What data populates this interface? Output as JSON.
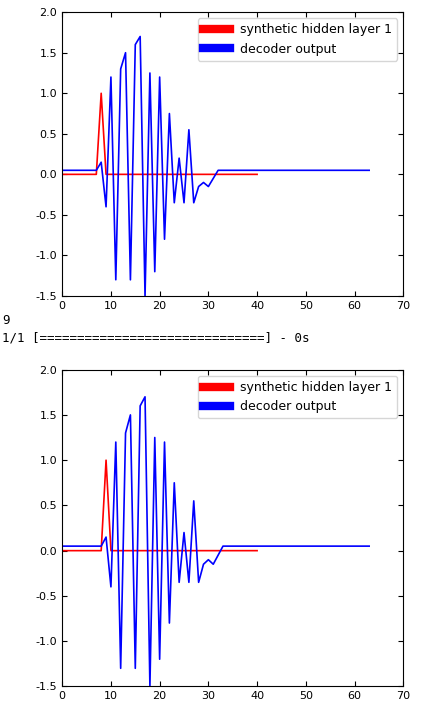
{
  "chart_data": [
    {
      "type": "line",
      "xlim": [
        0,
        70
      ],
      "xticks": [
        0,
        10,
        20,
        30,
        40,
        50,
        60,
        70
      ],
      "ylim": [
        -1.5,
        2.0
      ],
      "yticks": [
        -1.5,
        {
          "value": -1.0,
          "label": "-1.0"
        },
        -0.5,
        {
          "value": 0.0,
          "label": "0.0"
        },
        0.5,
        {
          "value": 1.0,
          "label": "1.0"
        },
        1.5,
        {
          "value": 2.0,
          "label": "2.0"
        }
      ],
      "legend": "upper right",
      "series": [
        {
          "name": "synthetic hidden layer 1",
          "color": "#ff0000",
          "x": [
            0,
            1,
            2,
            3,
            4,
            5,
            6,
            7,
            8,
            9,
            10,
            11,
            12,
            13,
            14,
            15,
            16,
            17,
            18,
            19,
            20,
            21,
            22,
            23,
            24,
            25,
            26,
            27,
            28,
            29,
            30,
            31,
            32,
            33,
            34,
            35,
            36,
            37,
            38,
            39,
            40
          ],
          "values": [
            0,
            0,
            0,
            0,
            0,
            0,
            0,
            0,
            1.0,
            0,
            0,
            0,
            0,
            0,
            0,
            0,
            0,
            0,
            0,
            0,
            0,
            0,
            0,
            0,
            0,
            0,
            0,
            0,
            0,
            0,
            0,
            0,
            0,
            0,
            0,
            0,
            0,
            0,
            0,
            0,
            0
          ]
        },
        {
          "name": "decoder output",
          "color": "#0000ff",
          "x": [
            0,
            1,
            2,
            3,
            4,
            5,
            6,
            7,
            8,
            9,
            10,
            11,
            12,
            13,
            14,
            15,
            16,
            17,
            18,
            19,
            20,
            21,
            22,
            23,
            24,
            25,
            26,
            27,
            28,
            29,
            30,
            31,
            32,
            33,
            34,
            35,
            36,
            37,
            38,
            39,
            40,
            41,
            42,
            43,
            44,
            45,
            46,
            47,
            48,
            49,
            50,
            51,
            52,
            53,
            54,
            55,
            56,
            57,
            58,
            59,
            60,
            61,
            62,
            63
          ],
          "values": [
            0.05,
            0.05,
            0.05,
            0.05,
            0.05,
            0.05,
            0.05,
            0.05,
            0.15,
            -0.4,
            1.2,
            -1.3,
            1.3,
            1.5,
            -1.3,
            1.6,
            1.7,
            -1.5,
            1.25,
            -1.2,
            1.2,
            -0.8,
            0.75,
            -0.35,
            0.2,
            -0.35,
            0.55,
            -0.35,
            -0.15,
            -0.1,
            -0.15,
            -0.05,
            0.05,
            0.05,
            0.05,
            0.05,
            0.05,
            0.05,
            0.05,
            0.05,
            0.05,
            0.05,
            0.05,
            0.05,
            0.05,
            0.05,
            0.05,
            0.05,
            0.05,
            0.05,
            0.05,
            0.05,
            0.05,
            0.05,
            0.05,
            0.05,
            0.05,
            0.05,
            0.05,
            0.05,
            0.05,
            0.05,
            0.05,
            0.05
          ]
        }
      ]
    },
    {
      "type": "line",
      "xlim": [
        0,
        70
      ],
      "xticks": [
        0,
        10,
        20,
        30,
        40,
        50,
        60,
        70
      ],
      "ylim": [
        -1.5,
        2.0
      ],
      "yticks": [
        -1.5,
        {
          "value": -1.0,
          "label": "-1.0"
        },
        -0.5,
        {
          "value": 0.0,
          "label": "0.0"
        },
        0.5,
        {
          "value": 1.0,
          "label": "1.0"
        },
        1.5,
        {
          "value": 2.0,
          "label": "2.0"
        }
      ],
      "legend": "upper right",
      "series": [
        {
          "name": "synthetic hidden layer 1",
          "color": "#ff0000",
          "x": [
            0,
            1,
            2,
            3,
            4,
            5,
            6,
            7,
            8,
            9,
            10,
            11,
            12,
            13,
            14,
            15,
            16,
            17,
            18,
            19,
            20,
            21,
            22,
            23,
            24,
            25,
            26,
            27,
            28,
            29,
            30,
            31,
            32,
            33,
            34,
            35,
            36,
            37,
            38,
            39,
            40
          ],
          "values": [
            0,
            0,
            0,
            0,
            0,
            0,
            0,
            0,
            0,
            1.0,
            0,
            0,
            0,
            0,
            0,
            0,
            0,
            0,
            0,
            0,
            0,
            0,
            0,
            0,
            0,
            0,
            0,
            0,
            0,
            0,
            0,
            0,
            0,
            0,
            0,
            0,
            0,
            0,
            0,
            0,
            0
          ]
        },
        {
          "name": "decoder output",
          "color": "#0000ff",
          "x": [
            0,
            1,
            2,
            3,
            4,
            5,
            6,
            7,
            8,
            9,
            10,
            11,
            12,
            13,
            14,
            15,
            16,
            17,
            18,
            19,
            20,
            21,
            22,
            23,
            24,
            25,
            26,
            27,
            28,
            29,
            30,
            31,
            32,
            33,
            34,
            35,
            36,
            37,
            38,
            39,
            40,
            41,
            42,
            43,
            44,
            45,
            46,
            47,
            48,
            49,
            50,
            51,
            52,
            53,
            54,
            55,
            56,
            57,
            58,
            59,
            60,
            61,
            62,
            63
          ],
          "values": [
            0.05,
            0.05,
            0.05,
            0.05,
            0.05,
            0.05,
            0.05,
            0.05,
            0.05,
            0.15,
            -0.4,
            1.2,
            -1.3,
            1.3,
            1.5,
            -1.3,
            1.6,
            1.7,
            -1.5,
            1.25,
            -1.2,
            1.2,
            -0.8,
            0.75,
            -0.35,
            0.2,
            -0.35,
            0.55,
            -0.35,
            -0.15,
            -0.1,
            -0.15,
            -0.05,
            0.05,
            0.05,
            0.05,
            0.05,
            0.05,
            0.05,
            0.05,
            0.05,
            0.05,
            0.05,
            0.05,
            0.05,
            0.05,
            0.05,
            0.05,
            0.05,
            0.05,
            0.05,
            0.05,
            0.05,
            0.05,
            0.05,
            0.05,
            0.05,
            0.05,
            0.05,
            0.05,
            0.05,
            0.05,
            0.05,
            0.05
          ]
        }
      ]
    }
  ],
  "console_lines": [
    "9",
    "1/1 [==============================] - 0s"
  ]
}
